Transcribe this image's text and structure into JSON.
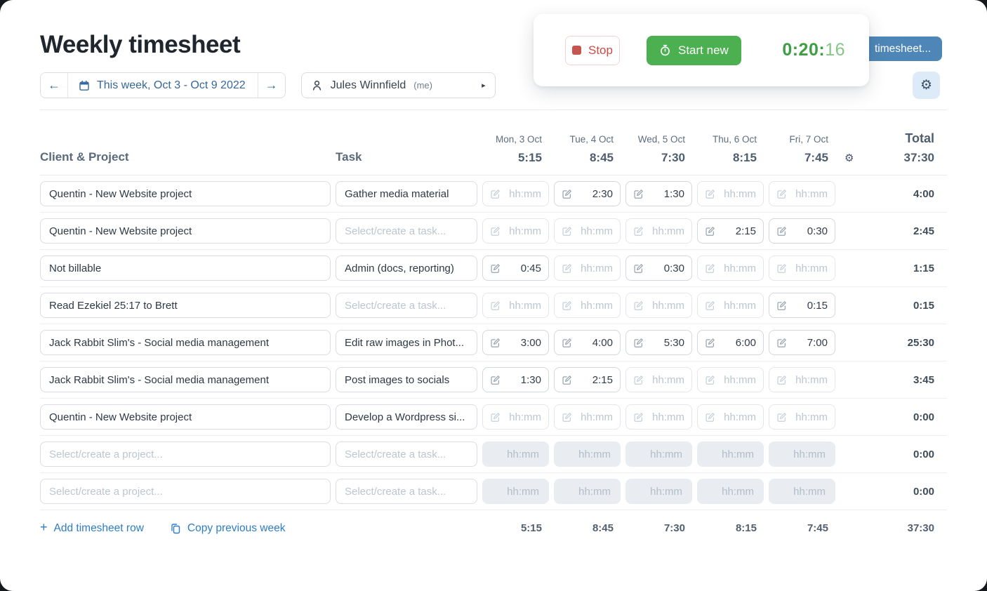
{
  "page": {
    "title": "Weekly timesheet"
  },
  "toolbar": {
    "week_nav": {
      "label": "This week, Oct 3 - Oct 9 2022"
    },
    "person": {
      "name": "Jules Winnfield",
      "suffix": "(me)"
    }
  },
  "timer_card": {
    "stop_label": "Stop",
    "start_label": "Start new",
    "time_main": "0:20:",
    "time_seconds": "16"
  },
  "submit_button": {
    "visible_label": "timesheet..."
  },
  "table": {
    "columns": {
      "project": "Client & Project",
      "task": "Task",
      "total": "Total"
    },
    "days": [
      {
        "label": "Mon, 3 Oct",
        "total": "5:15"
      },
      {
        "label": "Tue, 4 Oct",
        "total": "8:45"
      },
      {
        "label": "Wed, 5 Oct",
        "total": "7:30"
      },
      {
        "label": "Thu, 6 Oct",
        "total": "8:15"
      },
      {
        "label": "Fri, 7 Oct",
        "total": "7:45"
      }
    ],
    "week_total": "37:30",
    "project_placeholder": "Select/create a project...",
    "task_placeholder": "Select/create a task...",
    "cell_placeholder": "hh:mm",
    "rows": [
      {
        "project": "Quentin - New Website project",
        "task": "Gather media material",
        "cells": [
          "",
          "2:30",
          "1:30",
          "",
          ""
        ],
        "total": "4:00",
        "disabled": false
      },
      {
        "project": "Quentin - New Website project",
        "task": "",
        "cells": [
          "",
          "",
          "",
          "2:15",
          "0:30"
        ],
        "total": "2:45",
        "disabled": false
      },
      {
        "project": "Not billable",
        "task": "Admin (docs, reporting)",
        "cells": [
          "0:45",
          "",
          "0:30",
          "",
          ""
        ],
        "total": "1:15",
        "disabled": false
      },
      {
        "project": "Read Ezekiel 25:17 to Brett",
        "task": "",
        "cells": [
          "",
          "",
          "",
          "",
          "0:15"
        ],
        "total": "0:15",
        "disabled": false
      },
      {
        "project": "Jack Rabbit Slim's - Social media management",
        "task": "Edit raw images in Phot...",
        "cells": [
          "3:00",
          "4:00",
          "5:30",
          "6:00",
          "7:00"
        ],
        "total": "25:30",
        "disabled": false
      },
      {
        "project": "Jack Rabbit Slim's - Social media management",
        "task": "Post images to socials",
        "cells": [
          "1:30",
          "2:15",
          "",
          "",
          ""
        ],
        "total": "3:45",
        "disabled": false
      },
      {
        "project": "Quentin - New Website project",
        "task": "Develop a Wordpress si...",
        "cells": [
          "",
          "",
          "",
          "",
          ""
        ],
        "total": "0:00",
        "disabled": false
      },
      {
        "project": "",
        "task": "",
        "cells": [
          "",
          "",
          "",
          "",
          ""
        ],
        "total": "0:00",
        "disabled": true
      },
      {
        "project": "",
        "task": "",
        "cells": [
          "",
          "",
          "",
          "",
          ""
        ],
        "total": "0:00",
        "disabled": true
      }
    ],
    "footer": {
      "add_row_label": "Add timesheet row",
      "copy_week_label": "Copy previous week",
      "day_totals": [
        "5:15",
        "8:45",
        "7:30",
        "8:15",
        "7:45"
      ],
      "week_total": "37:30"
    }
  },
  "icons": {
    "prev_arrow": "←",
    "next_arrow": "→",
    "caret": "▸",
    "gear": "⚙",
    "plus": "+"
  },
  "colors": {
    "accent_link_blue": "#2d7dc5",
    "week_nav_blue": "#35679b",
    "start_green": "#4caf50",
    "timer_green": "#3c9f43",
    "timer_green_light": "#82c787",
    "stop_red": "#cb4a46",
    "submit_blue": "#4e87b7",
    "settings_bg": "#dcebf7",
    "disabled_cell_bg": "#e9edf2"
  }
}
